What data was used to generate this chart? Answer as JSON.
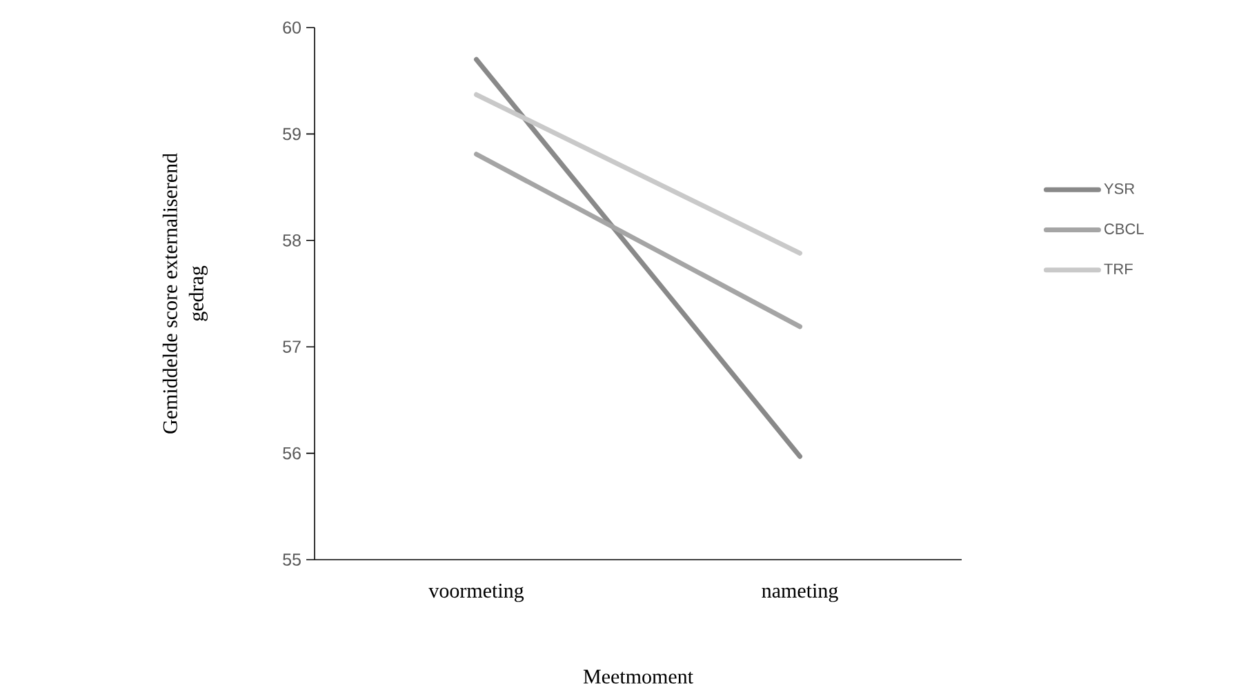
{
  "chart_data": {
    "type": "line",
    "xlabel": "Meetmoment",
    "ylabel": "Gemiddelde score externaliserend gedrag",
    "categories": [
      "voormeting",
      "nameting"
    ],
    "series": [
      {
        "name": "YSR",
        "color": "#898989",
        "values": [
          59.7,
          55.97
        ]
      },
      {
        "name": "CBCL",
        "color": "#a5a5a5",
        "values": [
          58.81,
          57.19
        ]
      },
      {
        "name": "TRF",
        "color": "#c9c9c9",
        "values": [
          59.37,
          57.88
        ]
      }
    ],
    "ylim": [
      55,
      60
    ],
    "yticks": [
      55,
      56,
      57,
      58,
      59,
      60
    ],
    "grid": false,
    "legend": "right",
    "marker": "none",
    "line_style": "solid"
  }
}
